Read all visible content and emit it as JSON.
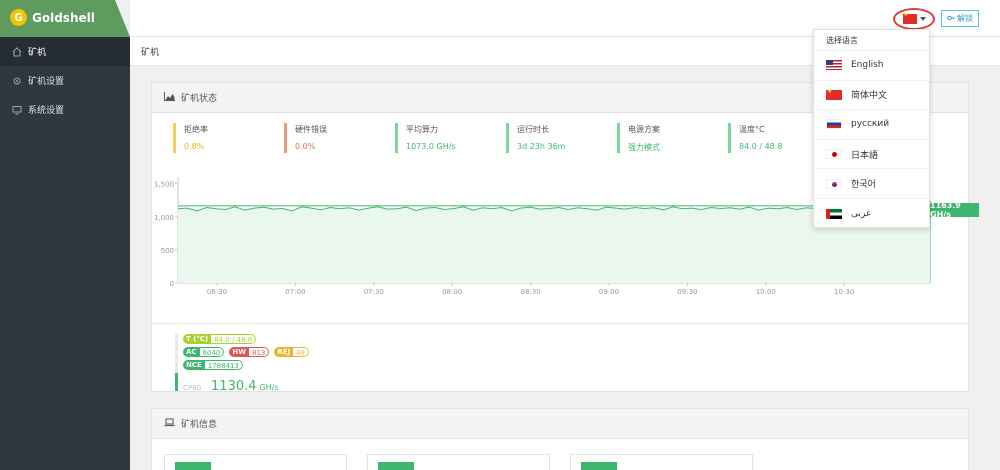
{
  "brand": {
    "name": "Goldshell",
    "logo_letter": "G",
    "color": "#5f9a5f"
  },
  "sidebar": {
    "items": [
      {
        "label": "矿机",
        "icon": "home-icon",
        "active": true
      },
      {
        "label": "矿机设置",
        "icon": "gear-icon",
        "active": false
      },
      {
        "label": "系统设置",
        "icon": "monitor-icon",
        "active": false
      }
    ]
  },
  "header": {
    "unlock_label": "解锁",
    "language_flag": "cn-flag-icon"
  },
  "breadcrumb": {
    "current": "矿机"
  },
  "status_panel": {
    "title": "矿机状态",
    "stats": [
      {
        "label": "拒绝率",
        "value": "0.8%",
        "color": "#f0d25a",
        "value_color": "#e6b800"
      },
      {
        "label": "硬件错误",
        "value": "0.0%",
        "color": "#e59a86",
        "value_color": "#e0704f"
      },
      {
        "label": "平均算力",
        "value": "1073.0 GH/s",
        "color": "#7ed49a",
        "value_color": "#3fb66e"
      },
      {
        "label": "运行时长",
        "value": "3d 23h 36m",
        "color": "#7ed49a",
        "value_color": "#3fb66e"
      },
      {
        "label": "电源方案",
        "value": "强力模式",
        "color": "#7ed49a",
        "value_color": "#3fb66e"
      },
      {
        "label": "温度°C",
        "value": "84.0 / 48.8",
        "color": "#7ed49a",
        "value_color": "#3fb66e"
      }
    ],
    "current_hashrate_badge": "1163.9 GH/s",
    "tags": {
      "temp": {
        "key": "T (°C)",
        "value": "84.0 / 48.8",
        "color": "#a7d32c"
      },
      "ac": {
        "key": "AC",
        "value": "6040",
        "color": "#3fb66e"
      },
      "hw": {
        "key": "HW",
        "value": "813",
        "color": "#e05555"
      },
      "rej": {
        "key": "REJ",
        "value": "48",
        "color": "#f0b429"
      },
      "nce": {
        "key": "NCE",
        "value": "1788413",
        "color": "#3fb66e"
      }
    },
    "model": "CP80",
    "hashrate_value": "1130.4",
    "hashrate_unit": "GH/s"
  },
  "chart_data": {
    "type": "area",
    "x_ticks": [
      "06:30",
      "07:00",
      "07:30",
      "08:00",
      "08:30",
      "09:00",
      "09:30",
      "10:00",
      "10:30"
    ],
    "y_ticks": [
      "0",
      "500",
      "1,000",
      "1,500"
    ],
    "ylim": [
      0,
      1600
    ],
    "ylabel": "",
    "xlabel": "",
    "series": [
      {
        "values": [
          1120,
          1130,
          1090,
          1140,
          1120,
          1110,
          1150,
          1100,
          1130,
          1145,
          1115,
          1125,
          1090,
          1150,
          1130,
          1105,
          1140,
          1120,
          1135,
          1100,
          1130,
          1150,
          1115,
          1120,
          1145,
          1095,
          1130,
          1140,
          1110,
          1125,
          1150,
          1100,
          1135,
          1120,
          1140,
          1090,
          1130,
          1145,
          1115,
          1125,
          1140,
          1110,
          1135,
          1120,
          1100,
          1145,
          1130,
          1115,
          1140,
          1125,
          1135,
          1105,
          1150,
          1120,
          1130,
          1110,
          1140,
          1125,
          1135,
          1115,
          1145,
          1100,
          1130,
          1120,
          1140,
          1110,
          1135,
          1125,
          1150,
          1105,
          1130,
          1140,
          1115,
          1125,
          1145,
          1110,
          1135,
          1120,
          1140,
          1100
        ]
      }
    ],
    "reference_line": 1163.9,
    "grid": false,
    "line_color": "#3fb66e",
    "fill_color": "#eaf7ee"
  },
  "info_panel": {
    "title": "矿机信息"
  },
  "language_menu": {
    "title": "选择语言",
    "items": [
      {
        "label": "English",
        "flag": "us-flag-icon"
      },
      {
        "label": "简体中文",
        "flag": "cn-flag-icon"
      },
      {
        "label": "русский",
        "flag": "ru-flag-icon"
      },
      {
        "label": "日本語",
        "flag": "jp-flag-icon"
      },
      {
        "label": "한국어",
        "flag": "kr-flag-icon"
      },
      {
        "label": "عربى",
        "flag": "ae-flag-icon"
      }
    ]
  }
}
